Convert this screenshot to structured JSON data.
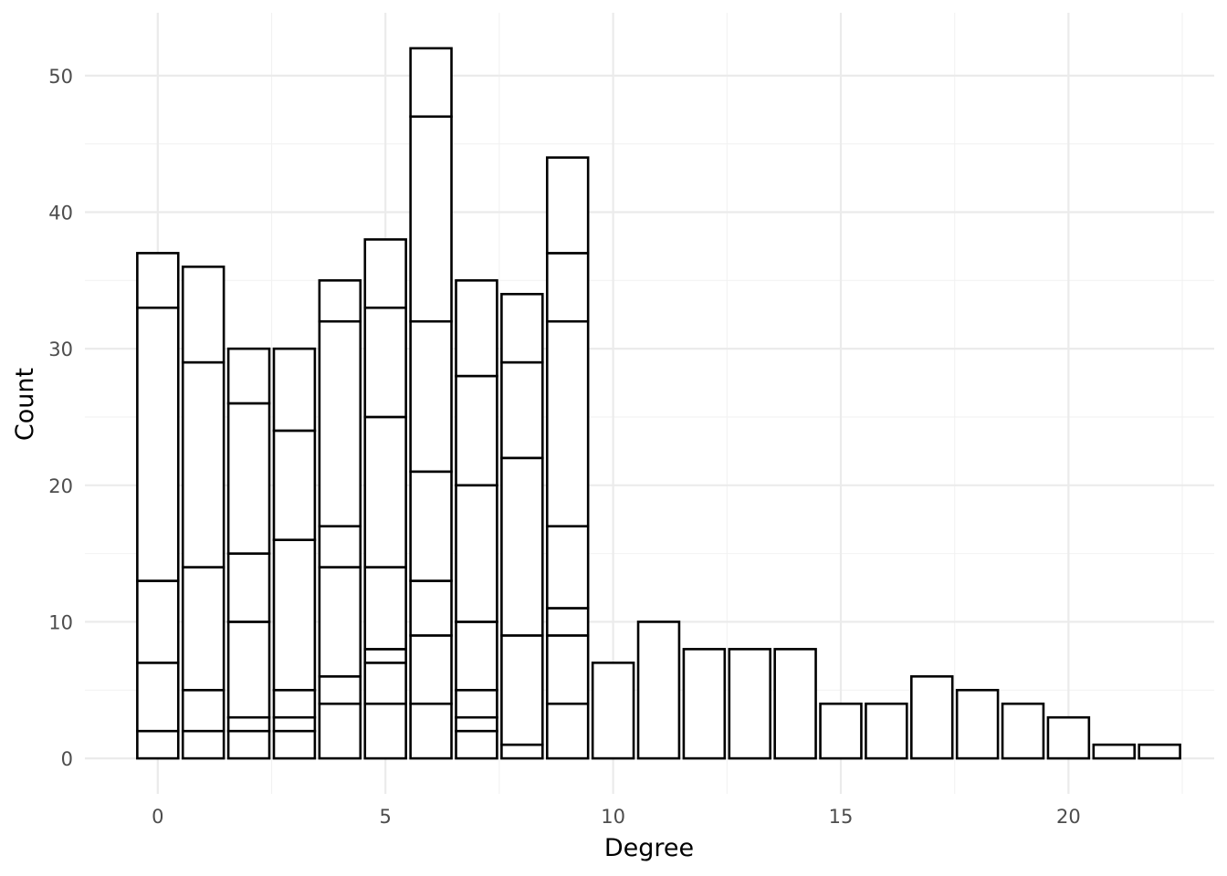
{
  "chart_data": {
    "type": "bar",
    "stacked": true,
    "xlabel": "Degree",
    "ylabel": "Count",
    "xlim": [
      -1.6,
      23.2
    ],
    "ylim": [
      -2.6,
      54.6
    ],
    "x_ticks": [
      0,
      5,
      10,
      15,
      20
    ],
    "y_ticks": [
      0,
      10,
      20,
      30,
      40,
      50
    ],
    "grid": true,
    "legend": "none",
    "bar_fill": "#ffffff",
    "bar_outline": "#000000",
    "bars": [
      {
        "x": 0,
        "segments": [
          2,
          5,
          6,
          20,
          4
        ]
      },
      {
        "x": 1,
        "segments": [
          2,
          3,
          9,
          15,
          7
        ]
      },
      {
        "x": 2,
        "segments": [
          2,
          1,
          7,
          5,
          11,
          4
        ]
      },
      {
        "x": 3,
        "segments": [
          2,
          1,
          2,
          11,
          8,
          6
        ]
      },
      {
        "x": 4,
        "segments": [
          4,
          2,
          8,
          3,
          15,
          3
        ]
      },
      {
        "x": 5,
        "segments": [
          4,
          3,
          1,
          6,
          11,
          8,
          5
        ]
      },
      {
        "x": 6,
        "segments": [
          4,
          5,
          4,
          8,
          11,
          15,
          5
        ]
      },
      {
        "x": 7,
        "segments": [
          2,
          1,
          2,
          5,
          10,
          8,
          7
        ]
      },
      {
        "x": 8,
        "segments": [
          1,
          8,
          13,
          7,
          5
        ]
      },
      {
        "x": 9,
        "segments": [
          4,
          5,
          2,
          6,
          15,
          5,
          7
        ]
      },
      {
        "x": 10,
        "segments": [
          7
        ]
      },
      {
        "x": 11,
        "segments": [
          10
        ]
      },
      {
        "x": 12,
        "segments": [
          8
        ]
      },
      {
        "x": 13,
        "segments": [
          8
        ]
      },
      {
        "x": 14,
        "segments": [
          8
        ]
      },
      {
        "x": 15,
        "segments": [
          4
        ]
      },
      {
        "x": 16,
        "segments": [
          4
        ]
      },
      {
        "x": 17,
        "segments": [
          6
        ]
      },
      {
        "x": 18,
        "segments": [
          5
        ]
      },
      {
        "x": 19,
        "segments": [
          4
        ]
      },
      {
        "x": 20,
        "segments": [
          3
        ]
      },
      {
        "x": 21,
        "segments": [
          1
        ]
      },
      {
        "x": 22,
        "segments": [
          1
        ]
      }
    ],
    "totals": [
      37,
      36,
      30,
      30,
      35,
      38,
      52,
      35,
      34,
      44,
      7,
      10,
      8,
      8,
      8,
      4,
      4,
      6,
      5,
      4,
      3,
      1,
      1
    ]
  }
}
